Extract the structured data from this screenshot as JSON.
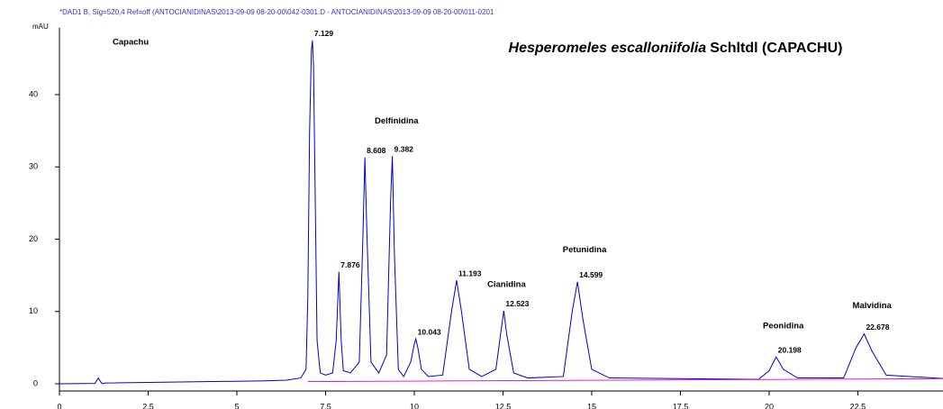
{
  "chart_data": {
    "type": "line",
    "header": "*DAD1 B, Sig=520,4 Ref=off (ANTOCIANIDINAS\\2013-09-09 08-20-00\\042-0301.D - ANTOCIANIDINAS\\2013-09-09 08-20-00\\011-0201",
    "y_label": "mAU",
    "subtitle": "Capachu",
    "title_italic": "Hesperomeles escalloniifolia",
    "title_rest": "Schltdl (CAPACHU)",
    "xlim": [
      0,
      24.9
    ],
    "xticks": [
      0,
      2.5,
      5,
      7.5,
      10,
      12.5,
      15,
      17.5,
      20,
      22.5
    ],
    "ylim": [
      -1,
      48
    ],
    "yticks": [
      0,
      10,
      20,
      30,
      40
    ],
    "series": [
      {
        "color": "#0000cc",
        "x": [
          0,
          1.0,
          1.07,
          1.1,
          1.13,
          1.2,
          1.3,
          5.8,
          6.4,
          6.8,
          6.95,
          7.0,
          7.05,
          7.1,
          7.129,
          7.16,
          7.21,
          7.26,
          7.35,
          7.5,
          7.7,
          7.8,
          7.876,
          7.94,
          8.0,
          8.2,
          8.45,
          8.55,
          8.608,
          8.67,
          8.78,
          9.0,
          9.22,
          9.33,
          9.382,
          9.44,
          9.55,
          9.7,
          9.9,
          10.0,
          10.043,
          10.1,
          10.2,
          10.4,
          10.8,
          11.05,
          11.193,
          11.33,
          11.55,
          11.9,
          12.3,
          12.45,
          12.523,
          12.6,
          12.8,
          13.2,
          14.2,
          14.45,
          14.599,
          14.75,
          15.0,
          15.5,
          19.7,
          20.0,
          20.198,
          20.4,
          20.8,
          22.1,
          22.45,
          22.678,
          22.9,
          23.3,
          25
        ],
        "values": [
          0,
          0.05,
          0.6,
          0.8,
          0.5,
          0,
          0.1,
          0.4,
          0.5,
          0.8,
          2,
          12,
          35,
          46,
          47.5,
          44,
          25,
          6,
          1.5,
          1.2,
          1.5,
          6,
          15.5,
          6,
          1.8,
          1.5,
          3,
          20,
          31.3,
          20,
          3,
          1.5,
          4,
          25,
          31.5,
          18,
          2,
          1,
          3,
          5.5,
          6.2,
          5,
          2,
          1,
          1.2,
          10,
          14.3,
          10,
          2,
          1,
          2,
          7.5,
          10.1,
          7,
          1.5,
          0.8,
          1,
          10,
          14.1,
          9,
          2,
          0.8,
          0.6,
          1.8,
          3.7,
          2,
          0.8,
          0.8,
          5,
          6.9,
          4.5,
          1.2,
          0.7
        ]
      },
      {
        "color": "#e000e0",
        "x": [
          7.0,
          24.9
        ],
        "values": [
          0.3,
          0.7
        ]
      }
    ],
    "peaks": [
      {
        "rt": 7.129,
        "height": 47.5
      },
      {
        "rt": 7.876,
        "height": 15.5
      },
      {
        "rt": 8.608,
        "height": 31.3
      },
      {
        "rt": 9.382,
        "height": 31.5
      },
      {
        "rt": 10.043,
        "height": 6.2
      },
      {
        "rt": 11.193,
        "height": 14.3
      },
      {
        "rt": 12.523,
        "height": 10.1
      },
      {
        "rt": 14.599,
        "height": 14.1
      },
      {
        "rt": 20.198,
        "height": 3.7
      },
      {
        "rt": 22.678,
        "height": 6.9
      }
    ],
    "annotations": [
      {
        "text": "Delfinidina",
        "x": 9.5,
        "y": 36.3
      },
      {
        "text": "Cianidina",
        "x": 12.6,
        "y": 13.7
      },
      {
        "text": "Petunidina",
        "x": 14.8,
        "y": 18.5
      },
      {
        "text": "Peonidina",
        "x": 20.4,
        "y": 8.0
      },
      {
        "text": "Malvidina",
        "x": 22.9,
        "y": 10.8
      }
    ]
  }
}
